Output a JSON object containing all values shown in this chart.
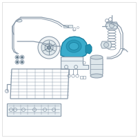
{
  "bg_color": "#ffffff",
  "line_color": "#8a9aaa",
  "highlight_color": "#3aaccc",
  "highlight_color2": "#1a80a0",
  "dark_line": "#5a7080",
  "fig_width": 2.0,
  "fig_height": 2.0,
  "dpi": 100
}
